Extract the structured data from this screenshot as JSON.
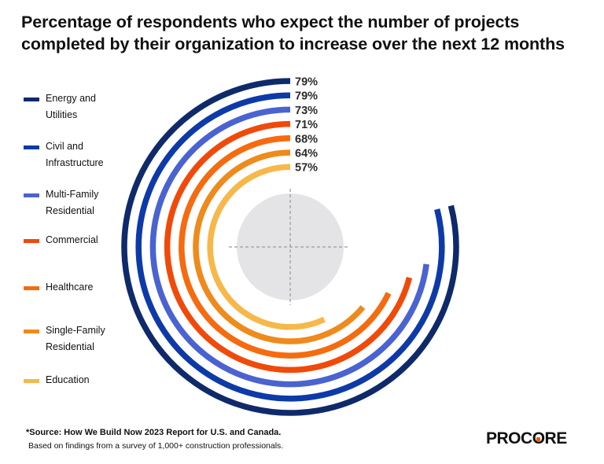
{
  "title_lines": [
    "Percentage of respondents who expect the number of projects",
    "completed by their organization to increase over the next 12 months"
  ],
  "chart_data": {
    "type": "radial-bar",
    "series": [
      {
        "name": "Energy and Utilities",
        "legend_lines": [
          "Energy and",
          "Utilities"
        ],
        "value": 79,
        "label": "79%",
        "color": "#0f2a6b"
      },
      {
        "name": "Civil and Infrastructure",
        "legend_lines": [
          "Civil and",
          "Infrastructure"
        ],
        "value": 79,
        "label": "79%",
        "color": "#0d3aa8"
      },
      {
        "name": "Multi-Family Residential",
        "legend_lines": [
          "Multi-Family",
          "Residential"
        ],
        "value": 73,
        "label": "73%",
        "color": "#4a63d0"
      },
      {
        "name": "Commercial",
        "legend_lines": [
          "Commercial"
        ],
        "value": 71,
        "label": "71%",
        "color": "#f04a0a"
      },
      {
        "name": "Healthcare",
        "legend_lines": [
          "Healthcare"
        ],
        "value": 68,
        "label": "68%",
        "color": "#f56b0f"
      },
      {
        "name": "Single-Family Residential",
        "legend_lines": [
          "Single-Family",
          "Residential"
        ],
        "value": 64,
        "label": "64%",
        "color": "#ef8a1c"
      },
      {
        "name": "Education",
        "legend_lines": [
          "Education"
        ],
        "value": 57,
        "label": "57%",
        "color": "#f7b84a"
      }
    ],
    "max": 100
  },
  "footer": {
    "source": "*Source: How We Build Now 2023 Report for U.S. and Canada.",
    "note": "Based on findings from a survey of 1,000+ construction professionals."
  },
  "logo_text": "PROCORE",
  "colors": {
    "center_disc": "#e4e4e6",
    "crosshair": "#9a9a9a",
    "logo_dot": "#f25a0f"
  }
}
